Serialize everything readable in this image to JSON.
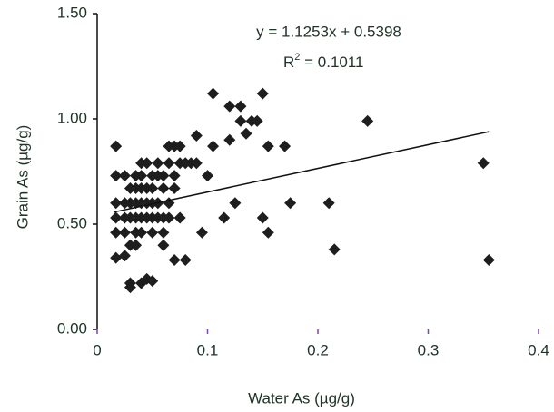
{
  "chart_data": {
    "type": "scatter",
    "x_label": "Water As (µg/g)",
    "y_label": "Grain As  (µg/g)",
    "equation": "y = 1.1253x + 0.5398",
    "r2": {
      "base": "R",
      "sup": "2",
      "rest": " = 0.1011"
    },
    "color": "#1e1e1e",
    "x": [
      0.017,
      0.017,
      0.017,
      0.017,
      0.017,
      0.017,
      0.025,
      0.025,
      0.025,
      0.025,
      0.025,
      0.03,
      0.03,
      0.03,
      0.03,
      0.03,
      0.03,
      0.035,
      0.035,
      0.035,
      0.035,
      0.035,
      0.035,
      0.04,
      0.04,
      0.04,
      0.04,
      0.04,
      0.04,
      0.04,
      0.045,
      0.045,
      0.045,
      0.045,
      0.045,
      0.05,
      0.05,
      0.05,
      0.05,
      0.05,
      0.05,
      0.055,
      0.055,
      0.055,
      0.055,
      0.06,
      0.06,
      0.06,
      0.06,
      0.06,
      0.065,
      0.065,
      0.065,
      0.065,
      0.07,
      0.07,
      0.07,
      0.07,
      0.075,
      0.075,
      0.075,
      0.08,
      0.08,
      0.085,
      0.09,
      0.09,
      0.095,
      0.1,
      0.105,
      0.105,
      0.115,
      0.12,
      0.12,
      0.125,
      0.13,
      0.13,
      0.135,
      0.14,
      0.145,
      0.15,
      0.15,
      0.155,
      0.155,
      0.17,
      0.175,
      0.21,
      0.215,
      0.245,
      0.35,
      0.355
    ],
    "values": [
      0.87,
      0.73,
      0.6,
      0.53,
      0.46,
      0.34,
      0.73,
      0.6,
      0.53,
      0.46,
      0.35,
      0.67,
      0.6,
      0.53,
      0.4,
      0.22,
      0.2,
      0.73,
      0.67,
      0.6,
      0.53,
      0.46,
      0.4,
      0.79,
      0.73,
      0.67,
      0.6,
      0.53,
      0.46,
      0.22,
      0.79,
      0.67,
      0.6,
      0.53,
      0.24,
      0.73,
      0.67,
      0.6,
      0.53,
      0.46,
      0.23,
      0.79,
      0.73,
      0.6,
      0.53,
      0.73,
      0.67,
      0.53,
      0.46,
      0.4,
      0.87,
      0.79,
      0.6,
      0.53,
      0.87,
      0.73,
      0.67,
      0.33,
      0.87,
      0.79,
      0.53,
      0.79,
      0.33,
      0.79,
      0.92,
      0.79,
      0.46,
      0.73,
      1.12,
      0.87,
      0.53,
      1.06,
      0.9,
      0.6,
      1.06,
      0.99,
      0.93,
      0.99,
      0.99,
      1.12,
      0.53,
      0.87,
      0.46,
      0.87,
      0.6,
      0.6,
      0.38,
      0.99,
      0.79,
      0.33
    ],
    "trendline": {
      "x": [
        0.015,
        0.355
      ],
      "y": [
        0.557,
        0.939
      ]
    },
    "xlim": [
      0,
      0.4
    ],
    "xticks": [
      0,
      0.1,
      0.2,
      0.3,
      0.4
    ],
    "ylim": [
      0,
      1.5
    ],
    "yticks": [
      {
        "value": 0,
        "label": "0.00"
      },
      {
        "value": 0.5,
        "label": "0.50"
      },
      {
        "value": 1,
        "label": "1.00"
      },
      {
        "value": 1.5,
        "label": "1.50"
      }
    ]
  }
}
